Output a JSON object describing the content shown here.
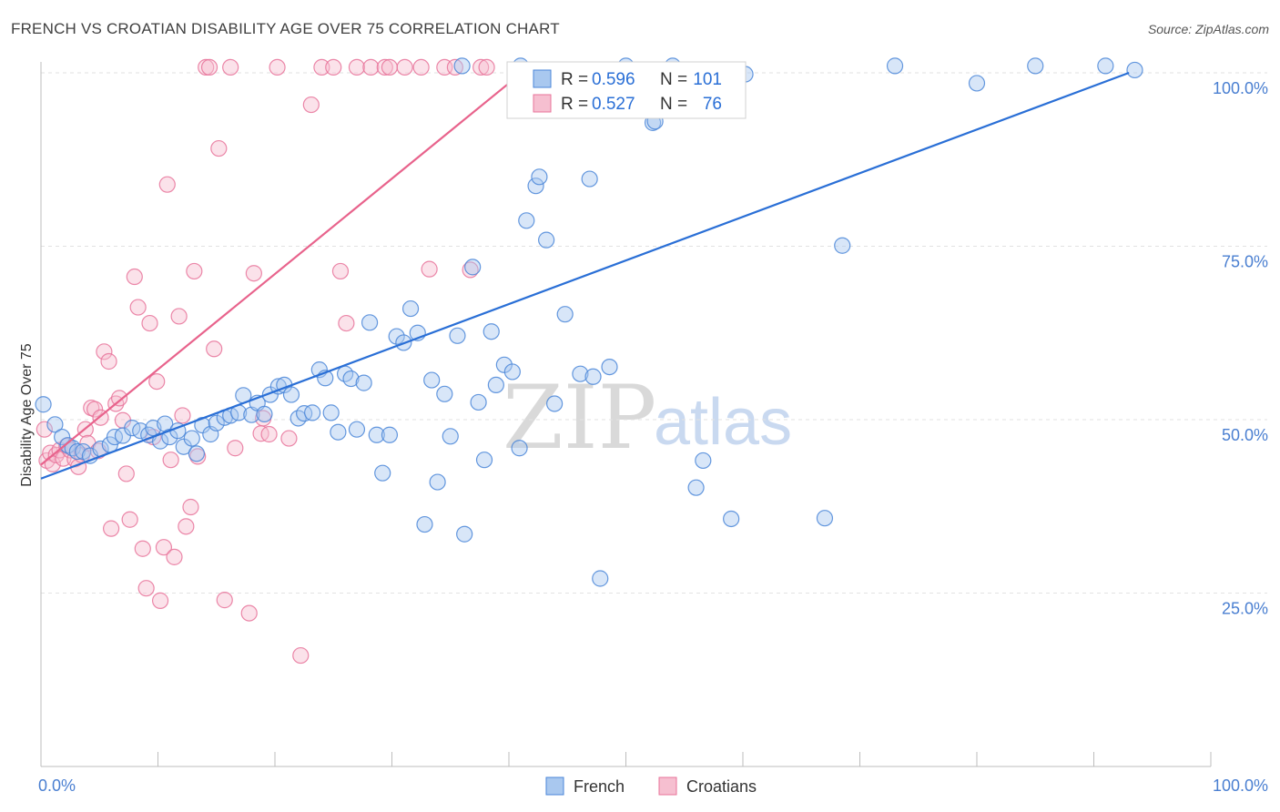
{
  "title": "FRENCH VS CROATIAN DISABILITY AGE OVER 75 CORRELATION CHART",
  "source": "Source: ZipAtlas.com",
  "watermark": {
    "zip": "ZIP",
    "atlas": "atlas"
  },
  "colors": {
    "french": "#4a86d8",
    "french_fill": "#a9c8ef",
    "croatian": "#e8739a",
    "croatian_fill": "#f6bfd0",
    "trend_french": "#2a6fd6",
    "trend_croatian": "#e8638c",
    "tick_text": "#4a7fd1"
  },
  "legend": {
    "r_label": "R =",
    "n_label": "N =",
    "french": {
      "r": "0.596",
      "n": "101"
    },
    "croatian": {
      "r": "0.527",
      "n": "76"
    }
  },
  "bottom_legend": {
    "french": "French",
    "croatians": "Croatians"
  },
  "chart_data": {
    "type": "scatter",
    "title": "FRENCH VS CROATIAN DISABILITY AGE OVER 75 CORRELATION CHART",
    "xlabel": "",
    "ylabel": "Disability Age Over 75",
    "xlim": [
      0,
      100
    ],
    "ylim": [
      0,
      102
    ],
    "x_tick_labels": {
      "left": "0.0%",
      "right": "100.0%"
    },
    "y_ticks": [
      {
        "value": 25,
        "label": "25.0%"
      },
      {
        "value": 50,
        "label": "50.0%"
      },
      {
        "value": 75,
        "label": "75.0%"
      },
      {
        "value": 100,
        "label": "100.0%"
      }
    ],
    "series": [
      {
        "name": "French",
        "trend": {
          "x0": 0,
          "y0": 41.5,
          "x1": 93,
          "y1": 100
        },
        "points": [
          [
            0.2,
            52.2
          ],
          [
            1.2,
            49.3
          ],
          [
            1.8,
            47.5
          ],
          [
            2.3,
            46.3
          ],
          [
            2.7,
            45.9
          ],
          [
            3.1,
            45.4
          ],
          [
            3.6,
            45.4
          ],
          [
            4.2,
            44.8
          ],
          [
            5.1,
            45.8
          ],
          [
            5.9,
            46.4
          ],
          [
            6.3,
            47.5
          ],
          [
            7.0,
            47.7
          ],
          [
            7.8,
            48.8
          ],
          [
            8.5,
            48.4
          ],
          [
            9.2,
            47.8
          ],
          [
            9.6,
            48.8
          ],
          [
            10.2,
            46.9
          ],
          [
            10.6,
            49.4
          ],
          [
            11.0,
            47.5
          ],
          [
            11.7,
            48.4
          ],
          [
            12.2,
            46.1
          ],
          [
            12.9,
            47.3
          ],
          [
            13.3,
            45.1
          ],
          [
            13.8,
            49.2
          ],
          [
            14.5,
            47.9
          ],
          [
            15.0,
            49.5
          ],
          [
            15.7,
            50.3
          ],
          [
            16.2,
            50.6
          ],
          [
            16.9,
            51.0
          ],
          [
            17.3,
            53.5
          ],
          [
            18.0,
            50.7
          ],
          [
            18.5,
            52.4
          ],
          [
            19.1,
            50.8
          ],
          [
            19.6,
            53.6
          ],
          [
            20.3,
            54.8
          ],
          [
            20.8,
            55.0
          ],
          [
            21.4,
            53.6
          ],
          [
            22.0,
            50.2
          ],
          [
            22.5,
            50.9
          ],
          [
            23.2,
            51.0
          ],
          [
            23.8,
            57.2
          ],
          [
            24.3,
            56.0
          ],
          [
            24.8,
            51.0
          ],
          [
            25.4,
            48.2
          ],
          [
            26.0,
            56.6
          ],
          [
            26.5,
            55.9
          ],
          [
            27.0,
            48.6
          ],
          [
            27.6,
            55.3
          ],
          [
            28.1,
            64.0
          ],
          [
            28.7,
            47.8
          ],
          [
            29.2,
            42.3
          ],
          [
            29.8,
            47.8
          ],
          [
            30.4,
            62.0
          ],
          [
            31.0,
            61.1
          ],
          [
            31.6,
            66.0
          ],
          [
            32.2,
            62.5
          ],
          [
            32.8,
            34.9
          ],
          [
            33.4,
            55.7
          ],
          [
            33.9,
            41.0
          ],
          [
            34.5,
            53.7
          ],
          [
            35.0,
            47.6
          ],
          [
            35.6,
            62.1
          ],
          [
            36.2,
            33.5
          ],
          [
            36.9,
            72.0
          ],
          [
            37.4,
            52.5
          ],
          [
            37.9,
            44.2
          ],
          [
            38.5,
            62.7
          ],
          [
            38.9,
            55.0
          ],
          [
            39.6,
            57.9
          ],
          [
            40.3,
            56.9
          ],
          [
            40.9,
            45.9
          ],
          [
            41.5,
            78.7
          ],
          [
            42.3,
            83.7
          ],
          [
            42.6,
            85.0
          ],
          [
            43.2,
            75.9
          ],
          [
            43.9,
            52.3
          ],
          [
            44.8,
            65.2
          ],
          [
            46.1,
            56.6
          ],
          [
            46.9,
            84.7
          ],
          [
            47.2,
            56.2
          ],
          [
            47.8,
            27.1
          ],
          [
            48.6,
            57.6
          ],
          [
            50.0,
            101.0
          ],
          [
            50.5,
            95.3
          ],
          [
            52.3,
            92.8
          ],
          [
            52.5,
            93.0
          ],
          [
            54.0,
            101.0
          ],
          [
            56.0,
            40.2
          ],
          [
            56.6,
            44.1
          ],
          [
            57.8,
            96.0
          ],
          [
            59.0,
            35.7
          ],
          [
            60.2,
            99.8
          ],
          [
            67.0,
            35.8
          ],
          [
            68.5,
            75.1
          ],
          [
            73.0,
            101.0
          ],
          [
            80.0,
            98.5
          ],
          [
            85.0,
            101.0
          ],
          [
            91.0,
            101.0
          ],
          [
            93.5,
            100.4
          ],
          [
            36.0,
            101.0
          ],
          [
            41.0,
            101.0
          ]
        ]
      },
      {
        "name": "Croatians",
        "trend": {
          "x0": 0,
          "y0": 43.5,
          "x1": 40,
          "y1": 98.5
        },
        "points": [
          [
            0.3,
            48.6
          ],
          [
            0.5,
            44.1
          ],
          [
            0.8,
            45.2
          ],
          [
            1.0,
            43.6
          ],
          [
            1.3,
            44.9
          ],
          [
            1.6,
            45.6
          ],
          [
            1.9,
            44.4
          ],
          [
            2.2,
            46.2
          ],
          [
            2.5,
            45.6
          ],
          [
            2.9,
            44.3
          ],
          [
            3.2,
            43.2
          ],
          [
            3.5,
            44.9
          ],
          [
            3.8,
            48.6
          ],
          [
            4.0,
            46.6
          ],
          [
            4.3,
            51.7
          ],
          [
            4.6,
            51.5
          ],
          [
            4.9,
            45.5
          ],
          [
            5.1,
            50.3
          ],
          [
            5.4,
            59.8
          ],
          [
            5.8,
            58.4
          ],
          [
            6.0,
            34.3
          ],
          [
            6.4,
            52.3
          ],
          [
            6.7,
            53.1
          ],
          [
            7.0,
            49.9
          ],
          [
            7.3,
            42.2
          ],
          [
            7.6,
            35.6
          ],
          [
            8.0,
            70.6
          ],
          [
            8.3,
            66.2
          ],
          [
            8.7,
            31.4
          ],
          [
            9.0,
            25.7
          ],
          [
            9.3,
            63.9
          ],
          [
            9.6,
            47.5
          ],
          [
            9.9,
            55.5
          ],
          [
            10.2,
            23.9
          ],
          [
            10.5,
            31.6
          ],
          [
            10.8,
            83.9
          ],
          [
            11.1,
            44.2
          ],
          [
            11.4,
            30.2
          ],
          [
            11.8,
            64.9
          ],
          [
            12.1,
            50.6
          ],
          [
            12.4,
            34.6
          ],
          [
            12.8,
            37.4
          ],
          [
            13.1,
            71.4
          ],
          [
            13.4,
            44.7
          ],
          [
            14.1,
            100.8
          ],
          [
            14.4,
            100.8
          ],
          [
            14.8,
            60.2
          ],
          [
            15.2,
            89.1
          ],
          [
            15.7,
            24.0
          ],
          [
            16.2,
            100.8
          ],
          [
            16.6,
            45.9
          ],
          [
            17.8,
            22.1
          ],
          [
            18.2,
            71.1
          ],
          [
            18.8,
            48.0
          ],
          [
            19.0,
            50.2
          ],
          [
            19.5,
            47.9
          ],
          [
            20.2,
            100.8
          ],
          [
            21.2,
            47.3
          ],
          [
            22.2,
            16.0
          ],
          [
            23.1,
            95.4
          ],
          [
            24.0,
            100.8
          ],
          [
            25.0,
            100.8
          ],
          [
            25.6,
            71.4
          ],
          [
            26.1,
            63.9
          ],
          [
            27.0,
            100.8
          ],
          [
            28.2,
            100.8
          ],
          [
            29.4,
            100.8
          ],
          [
            29.8,
            100.8
          ],
          [
            31.1,
            100.8
          ],
          [
            32.5,
            100.8
          ],
          [
            33.2,
            71.7
          ],
          [
            34.5,
            100.8
          ],
          [
            35.4,
            100.8
          ],
          [
            36.7,
            71.6
          ],
          [
            37.6,
            100.8
          ],
          [
            38.1,
            100.8
          ]
        ]
      }
    ]
  }
}
